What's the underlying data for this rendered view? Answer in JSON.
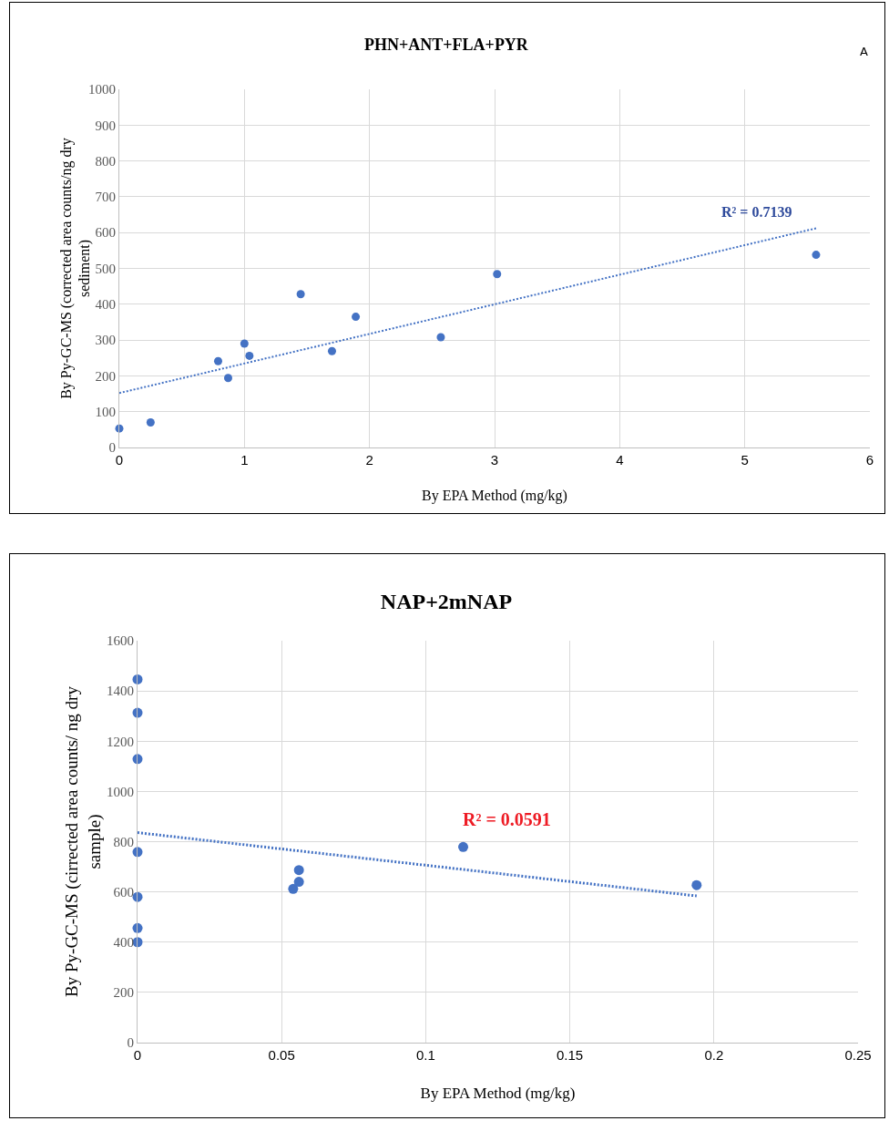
{
  "chart_data": [
    {
      "type": "scatter",
      "title": "PHN+ANT+FLA+PYR",
      "xlabel": "By EPA Method (mg/kg)",
      "ylabel": "By Py-GC-MS (corrected area counts/ng dry sediment)",
      "annotations": [
        "A",
        "R² = 0.7139"
      ],
      "xlim": [
        0,
        6
      ],
      "xticks": [
        0,
        1,
        2,
        3,
        4,
        5,
        6
      ],
      "ylim": [
        0,
        1000
      ],
      "yticks": [
        0,
        100,
        200,
        300,
        400,
        500,
        600,
        700,
        800,
        900,
        1000
      ],
      "grid": true,
      "x": [
        0,
        0.25,
        0.79,
        0.87,
        1.0,
        1.04,
        1.45,
        1.7,
        1.89,
        2.57,
        3.02,
        5.57
      ],
      "series": [
        {
          "color": "#4472c4",
          "marker": "circle",
          "values": [
            53,
            70,
            241,
            194,
            290,
            256,
            428,
            269,
            365,
            308,
            484,
            538
          ]
        },
        {
          "type": "line",
          "marker": "none",
          "line_style": "dotted",
          "color": "#4472c4",
          "x": [
            0,
            5.57
          ],
          "values": [
            152,
            612
          ]
        }
      ]
    },
    {
      "type": "scatter",
      "title": "NAP+2mNAP",
      "xlabel": "By EPA Method (mg/kg)",
      "ylabel": "By Py-GC-MS (cirrected area counts/ ng dry sample)",
      "annotations": [
        "R² = 0.0591"
      ],
      "xlim": [
        0,
        0.25
      ],
      "xticks": [
        0,
        0.05,
        0.1,
        0.15,
        0.2,
        0.25
      ],
      "ylim": [
        0,
        1600
      ],
      "yticks": [
        0,
        200,
        400,
        600,
        800,
        1000,
        1200,
        1400,
        1600
      ],
      "grid": true,
      "x": [
        0,
        0,
        0,
        0,
        0,
        0,
        0,
        0.054,
        0.056,
        0.056,
        0.113,
        0.194
      ],
      "series": [
        {
          "color": "#4472c4",
          "marker": "circle",
          "values": [
            1446,
            1313,
            1129,
            759,
            580,
            456,
            400,
            612,
            640,
            687,
            779,
            627
          ]
        },
        {
          "type": "line",
          "marker": "none",
          "line_style": "dotted",
          "color": "#4472c4",
          "x": [
            0,
            0.194
          ],
          "values": [
            836,
            584
          ]
        }
      ]
    }
  ]
}
